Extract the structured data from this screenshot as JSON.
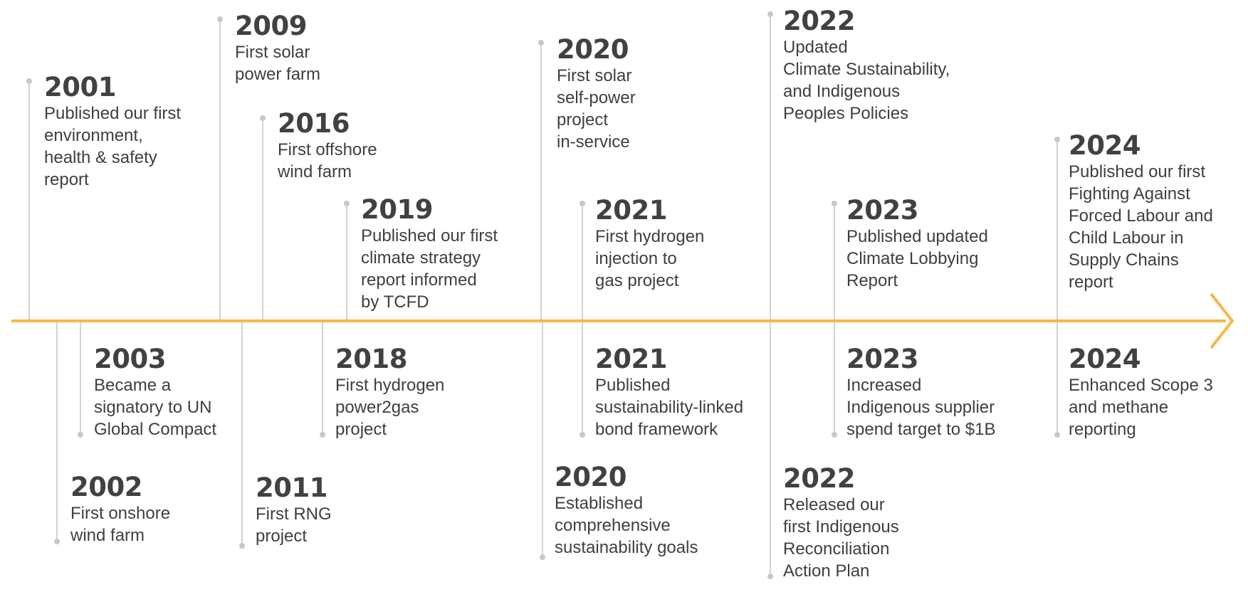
{
  "events": [
    {
      "year": "2001",
      "text": "Published our first\nenvironment,\nhealth & safety\nreport"
    },
    {
      "year": "2009",
      "text": "First solar\npower farm"
    },
    {
      "year": "2016",
      "text": "First offshore\nwind farm"
    },
    {
      "year": "2019",
      "text": "Published our first\nclimate strategy\nreport informed\nby TCFD"
    },
    {
      "year": "2020",
      "text": "First solar\nself-power\nproject\nin-service"
    },
    {
      "year": "2021",
      "text": "First hydrogen\ninjection to\ngas project"
    },
    {
      "year": "2022",
      "text": "Updated\nClimate Sustainability,\nand Indigenous\nPeoples Policies"
    },
    {
      "year": "2023",
      "text": "Published updated\nClimate Lobbying\nReport"
    },
    {
      "year": "2024",
      "text": "Published our first\nFighting Against\nForced Labour and\nChild Labour in\nSupply Chains\nreport"
    },
    {
      "year": "2003",
      "text": "Became a\nsignatory to UN\nGlobal Compact"
    },
    {
      "year": "2002",
      "text": "First onshore\nwind farm"
    },
    {
      "year": "2011",
      "text": "First RNG\nproject"
    },
    {
      "year": "2018",
      "text": "First hydrogen\npower2gas\nproject"
    },
    {
      "year": "2021",
      "text": "Published\nsustainability-linked\nbond framework"
    },
    {
      "year": "2020",
      "text": "Established\ncomprehensive\nsustainability goals"
    },
    {
      "year": "2023",
      "text": "Increased\nIndigenous supplier\nspend target to $1B"
    },
    {
      "year": "2022",
      "text": "Released our\nfirst Indigenous\nReconciliation\nAction Plan"
    },
    {
      "year": "2024",
      "text": "Enhanced Scope 3\nand methane\nreporting"
    }
  ],
  "colors": {
    "axis": "#f5b942",
    "connector": "#c8c8c8",
    "text": "#3f3f3f"
  }
}
